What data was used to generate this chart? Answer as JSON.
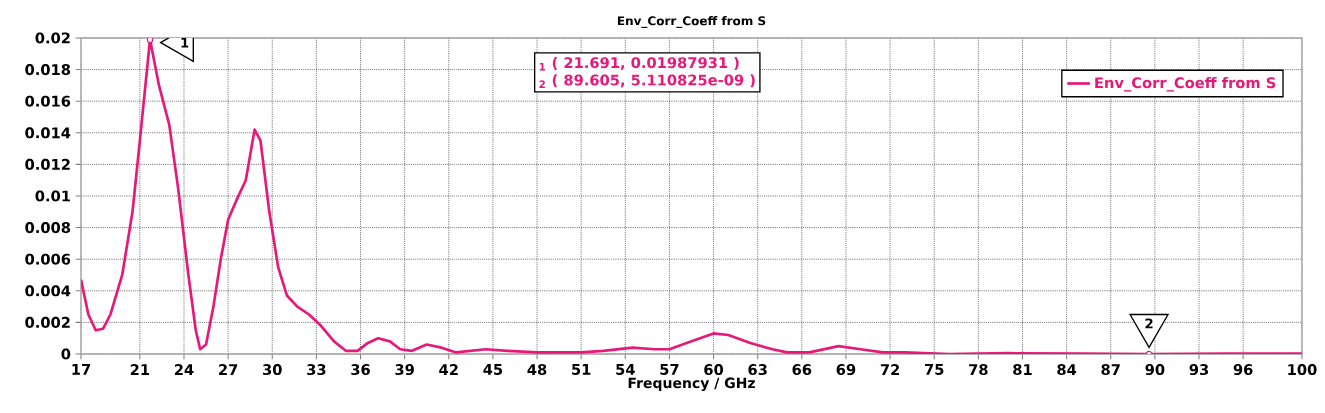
{
  "chart_data": {
    "type": "line",
    "title": "Env_Corr_Coeff from S",
    "xlabel": "Frequency / GHz",
    "xlim": [
      17,
      100
    ],
    "xticks": [
      17,
      21,
      24,
      27,
      30,
      33,
      36,
      39,
      42,
      45,
      48,
      51,
      54,
      57,
      60,
      63,
      66,
      69,
      72,
      75,
      78,
      81,
      84,
      87,
      90,
      93,
      96,
      100
    ],
    "ylim": [
      0,
      0.02
    ],
    "yticks": [
      0,
      0.002,
      0.004,
      0.006,
      0.008,
      0.01,
      0.012,
      0.014,
      0.016,
      0.018,
      0.02
    ],
    "grid": true,
    "legend": "top right",
    "line_style": "solid",
    "series": [
      {
        "name": "Env_Corr_Coeff from S",
        "color": "#e6197a",
        "x": [
          17,
          17.5,
          18,
          18.5,
          19,
          19.8,
          20.5,
          21,
          21.691,
          22.3,
          23,
          23.6,
          24.3,
          24.8,
          25.1,
          25.5,
          26,
          26.5,
          27,
          27.6,
          28.2,
          28.8,
          29.2,
          29.8,
          30.4,
          31,
          31.7,
          32.5,
          33.3,
          34.2,
          35,
          35.8,
          36.5,
          37.2,
          38,
          38.7,
          39.5,
          40.5,
          41.5,
          42.5,
          43.5,
          44.5,
          46,
          48,
          51,
          52.5,
          54.5,
          56,
          57,
          58.5,
          60,
          61,
          62.5,
          64,
          65,
          66.5,
          68.5,
          70,
          71.5,
          73,
          76,
          80,
          85,
          89.605,
          95,
          100
        ],
        "values": [
          0.0047,
          0.0025,
          0.0015,
          0.0016,
          0.0025,
          0.005,
          0.009,
          0.0135,
          0.0199,
          0.017,
          0.0145,
          0.0105,
          0.005,
          0.0015,
          0.0003,
          0.0006,
          0.003,
          0.006,
          0.0085,
          0.0098,
          0.011,
          0.0142,
          0.0135,
          0.009,
          0.0055,
          0.0037,
          0.003,
          0.0025,
          0.0018,
          0.0008,
          0.0002,
          0.0002,
          0.0007,
          0.001,
          0.0008,
          0.0003,
          0.0002,
          0.0006,
          0.0004,
          0.0001,
          0.0002,
          0.0003,
          0.0002,
          0.0001,
          0.0001,
          0.0002,
          0.0004,
          0.0003,
          0.0003,
          0.0008,
          0.0013,
          0.0012,
          0.0007,
          0.0003,
          0.0001,
          0.0001,
          0.0005,
          0.0003,
          0.0001,
          0.0001,
          0,
          5e-05,
          3e-05,
          0,
          3e-05,
          3e-05
        ]
      }
    ],
    "annotations": [
      {
        "text": "1",
        "x": 21.691,
        "y": 0.01987931
      },
      {
        "text": "2",
        "x": 89.605,
        "y": 5.110825e-09
      },
      "$_{1}$ ( 21.691, 0.01987931 )",
      "$_{2}$ ( 89.605, 5.110825e-09 )"
    ]
  }
}
